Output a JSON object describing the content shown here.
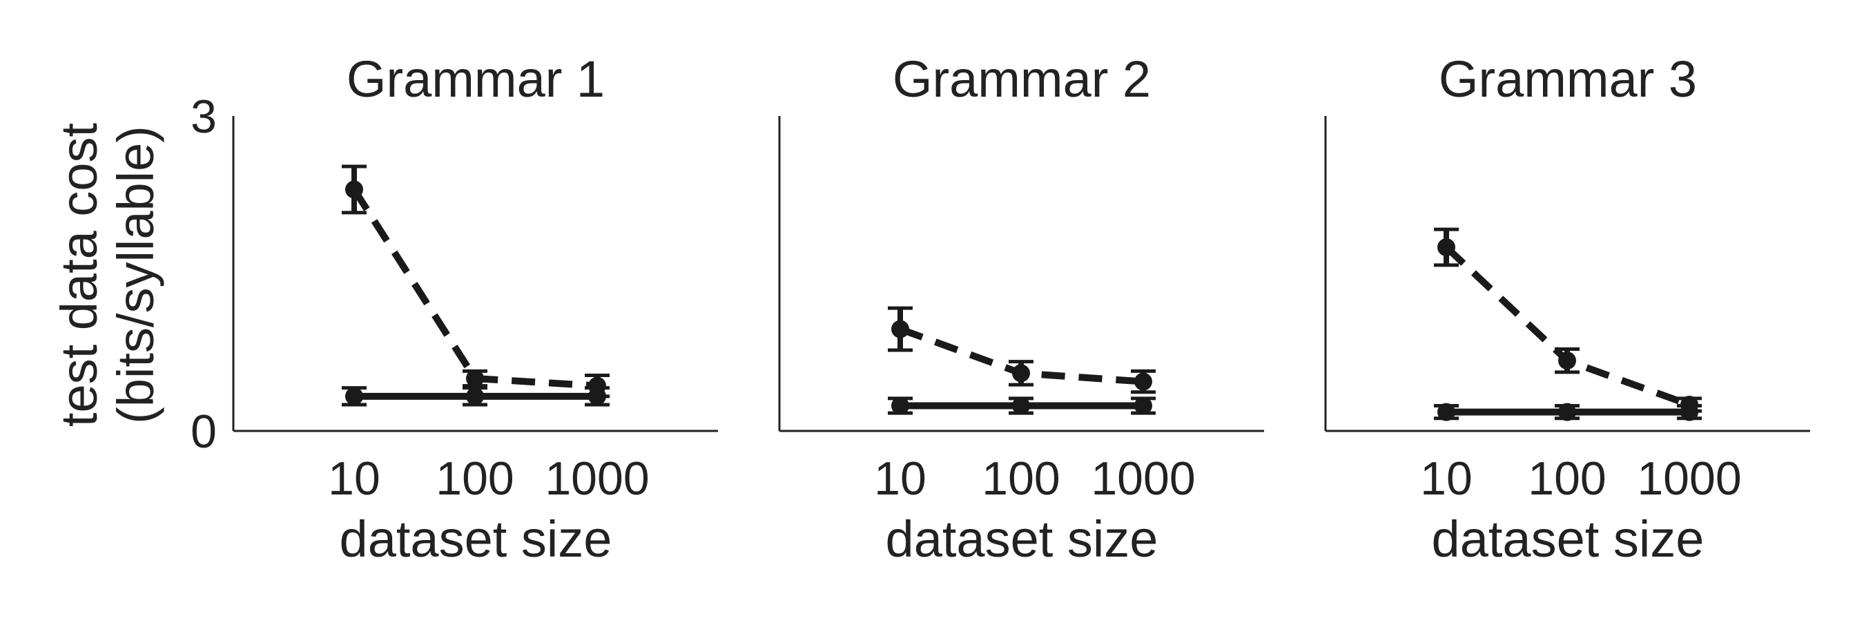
{
  "figure": {
    "ylabel_line1": "test data cost",
    "ylabel_line2": "(bits/syllable)",
    "xlabel": "dataset size",
    "color": "#1a1a1a"
  },
  "chart_data": [
    {
      "type": "line",
      "title": "Grammar 1",
      "xlabel": "dataset size",
      "ylabel": "test data cost (bits/syllable)",
      "x_scale": "log",
      "x": [
        10,
        100,
        1000
      ],
      "xticks": [
        "10",
        "100",
        "1000"
      ],
      "ylim": [
        0,
        3
      ],
      "yticks": [
        "0",
        "3"
      ],
      "grid": false,
      "legend": "none",
      "series": [
        {
          "style": "dashed",
          "values": [
            2.3,
            0.5,
            0.43
          ],
          "errors": [
            0.22,
            0.07,
            0.1
          ]
        },
        {
          "style": "solid",
          "values": [
            0.33,
            0.33,
            0.33
          ],
          "errors": [
            0.08,
            0.08,
            0.08
          ]
        }
      ]
    },
    {
      "type": "line",
      "title": "Grammar 2",
      "xlabel": "dataset size",
      "ylabel": "",
      "x_scale": "log",
      "x": [
        10,
        100,
        1000
      ],
      "xticks": [
        "10",
        "100",
        "1000"
      ],
      "ylim": [
        0,
        3
      ],
      "yticks": [],
      "grid": false,
      "legend": "none",
      "series": [
        {
          "style": "dashed",
          "values": [
            0.97,
            0.55,
            0.47
          ],
          "errors": [
            0.2,
            0.11,
            0.1
          ]
        },
        {
          "style": "solid",
          "values": [
            0.24,
            0.24,
            0.24
          ],
          "errors": [
            0.07,
            0.07,
            0.07
          ]
        }
      ]
    },
    {
      "type": "line",
      "title": "Grammar 3",
      "xlabel": "dataset size",
      "ylabel": "",
      "x_scale": "log",
      "x": [
        10,
        100,
        1000
      ],
      "xticks": [
        "10",
        "100",
        "1000"
      ],
      "ylim": [
        0,
        3
      ],
      "yticks": [],
      "grid": false,
      "legend": "none",
      "series": [
        {
          "style": "dashed",
          "values": [
            1.75,
            0.67,
            0.25
          ],
          "errors": [
            0.17,
            0.11,
            0.06
          ]
        },
        {
          "style": "solid",
          "values": [
            0.18,
            0.18,
            0.18
          ],
          "errors": [
            0.06,
            0.06,
            0.06
          ]
        }
      ]
    }
  ]
}
